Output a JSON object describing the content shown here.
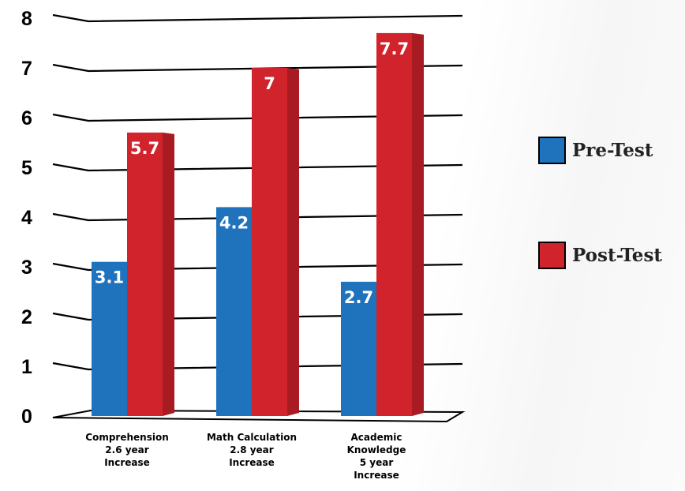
{
  "chart_data": {
    "type": "bar",
    "title": "",
    "xlabel": "",
    "ylabel": "",
    "ylim": [
      0,
      8
    ],
    "yticks": [
      "0",
      "1",
      "2",
      "3",
      "4",
      "5",
      "6",
      "7",
      "8"
    ],
    "categories": [
      [
        "Comprehension",
        "2.6 year",
        "Increase"
      ],
      [
        "Math Calculation",
        "2.8 year",
        "Increase"
      ],
      [
        "Academic",
        "Knowledge",
        "5 year",
        "Increase"
      ]
    ],
    "series": [
      {
        "name": "Pre-Test",
        "color": "#1f73bd",
        "side_color": "#1f73bd",
        "values": [
          3.1,
          4.2,
          2.7
        ],
        "labels": [
          "3.1",
          "4.2",
          "2.7"
        ]
      },
      {
        "name": "Post-Test",
        "color": "#d1232b",
        "side_color": "#a81b22",
        "values": [
          5.7,
          7,
          7.7
        ],
        "labels": [
          "5.7",
          "7",
          "7.7"
        ]
      }
    ],
    "grid": true,
    "legend_position": "right"
  }
}
